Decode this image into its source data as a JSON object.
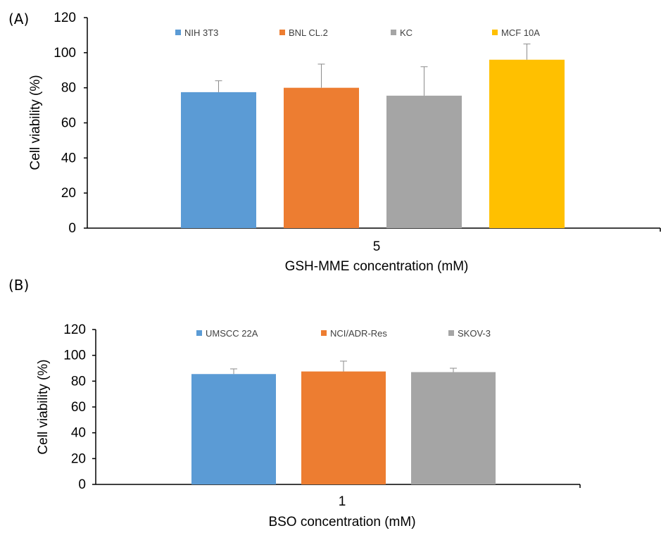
{
  "chart_data": [
    {
      "type": "bar",
      "panel_label": "(A)",
      "categories": [
        "5"
      ],
      "series": [
        {
          "name": "NIH 3T3",
          "values": [
            77.5
          ],
          "error": [
            6.5
          ],
          "color": "#5B9BD5"
        },
        {
          "name": "BNL CL.2",
          "values": [
            80
          ],
          "error": [
            13.5
          ],
          "color": "#ED7D31"
        },
        {
          "name": "KC",
          "values": [
            75.5
          ],
          "error": [
            16.5
          ],
          "color": "#A5A5A5"
        },
        {
          "name": "MCF 10A",
          "values": [
            96
          ],
          "error": [
            9
          ],
          "color": "#FFC000"
        }
      ],
      "xlabel": "GSH-MME concentration  (mM)",
      "ylabel": "Cell viability (%)",
      "ylim": [
        0,
        120
      ],
      "yticks": [
        "0",
        "20",
        "40",
        "60",
        "80",
        "100",
        "120"
      ],
      "legend_position": "top",
      "grid": false
    },
    {
      "type": "bar",
      "panel_label": "(B)",
      "categories": [
        "1"
      ],
      "series": [
        {
          "name": "UMSCC 22A",
          "values": [
            85.5
          ],
          "error": [
            4
          ],
          "color": "#5B9BD5"
        },
        {
          "name": "NCI/ADR-Res",
          "values": [
            87.5
          ],
          "error": [
            8
          ],
          "color": "#ED7D31"
        },
        {
          "name": "SKOV-3",
          "values": [
            87
          ],
          "error": [
            3
          ],
          "color": "#A5A5A5"
        }
      ],
      "xlabel": "BSO concentration  (mM)",
      "ylabel": "Cell viability (%)",
      "ylim": [
        0,
        120
      ],
      "yticks": [
        "0",
        "20",
        "40",
        "60",
        "80",
        "100",
        "120"
      ],
      "legend_position": "top",
      "grid": false
    }
  ]
}
